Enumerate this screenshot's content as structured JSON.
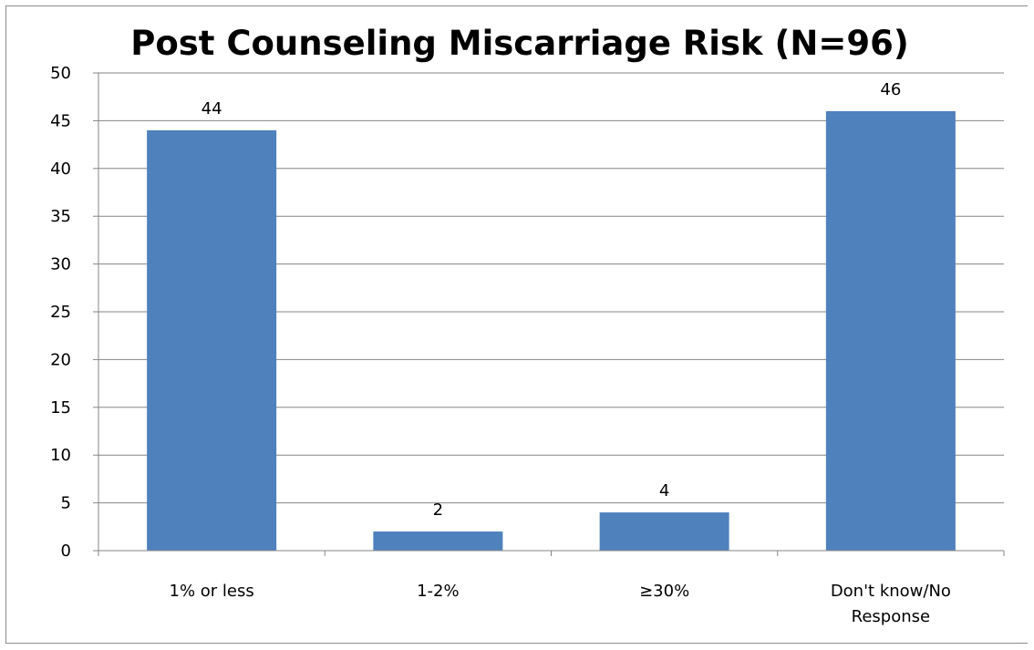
{
  "chart_data": {
    "type": "bar",
    "title": "Post Counseling Miscarriage Risk (N=96)",
    "xlabel": "",
    "ylabel": "",
    "categories": [
      "1% or less",
      "1-2%",
      "≥30%",
      "Don't know/No Response"
    ],
    "category_lines": [
      [
        "1% or less"
      ],
      [
        "1-2%"
      ],
      [
        "≥30%"
      ],
      [
        "Don't know/No",
        "Response"
      ]
    ],
    "values": [
      44,
      2,
      4,
      46
    ],
    "data_labels": [
      "44",
      "2",
      "4",
      "46"
    ],
    "ylim": [
      0,
      50
    ],
    "yticks": [
      0,
      5,
      10,
      15,
      20,
      25,
      30,
      35,
      40,
      45,
      50
    ],
    "grid": true,
    "legend": "none",
    "colors": {
      "bar": "#4f81bd",
      "grid": "#868686",
      "axis": "#868686",
      "frame": "#8c8c8c"
    }
  }
}
